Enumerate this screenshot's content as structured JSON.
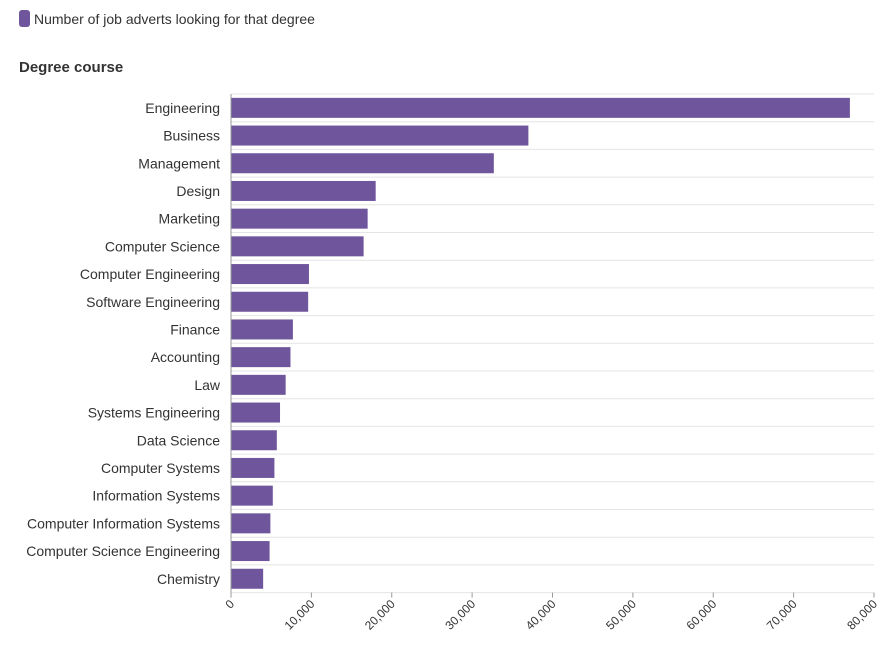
{
  "legend": {
    "label": "Number of job adverts looking for that degree"
  },
  "colors": {
    "bar": "#6f569c",
    "grid": "#e4e4e4",
    "axis": "#999999"
  },
  "chart_data": {
    "type": "bar",
    "orientation": "horizontal",
    "title": "",
    "ylabel": "Degree course",
    "xlabel": "",
    "xlim": [
      0,
      80000
    ],
    "xticks": [
      0,
      10000,
      20000,
      30000,
      40000,
      50000,
      60000,
      70000,
      80000
    ],
    "xtick_labels": [
      "0",
      "10,000",
      "20,000",
      "30,000",
      "40,000",
      "50,000",
      "60,000",
      "70,000",
      "80,000"
    ],
    "grid": true,
    "legend_position": "top-left",
    "categories": [
      "Engineering",
      "Business",
      "Management",
      "Design",
      "Marketing",
      "Computer Science",
      "Computer Engineering",
      "Software Engineering",
      "Finance",
      "Accounting",
      "Law",
      "Systems Engineering",
      "Data Science",
      "Computer Systems",
      "Information Systems",
      "Computer Information Systems",
      "Computer Science Engineering",
      "Chemistry"
    ],
    "series": [
      {
        "name": "Number of job adverts looking for that degree",
        "values": [
          77000,
          37000,
          32700,
          18000,
          17000,
          16500,
          9700,
          9600,
          7700,
          7400,
          6800,
          6100,
          5700,
          5400,
          5200,
          4900,
          4800,
          4000
        ]
      }
    ]
  }
}
